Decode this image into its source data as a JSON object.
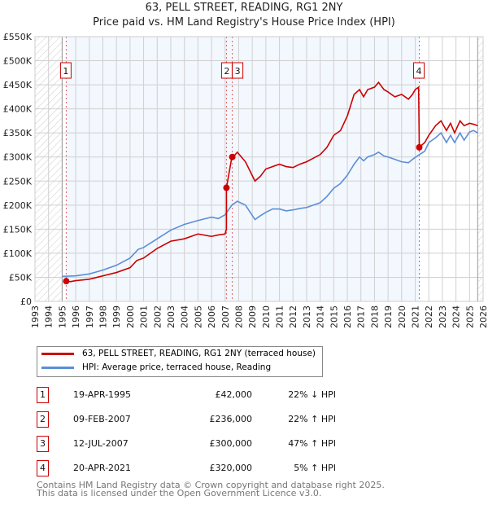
{
  "chart_data": {
    "type": "line",
    "title": "63, PELL STREET, READING, RG1 2NY",
    "subtitle": "Price paid vs. HM Land Registry's House Price Index (HPI)",
    "xlim": [
      1993,
      2026
    ],
    "ylim": [
      0,
      550000
    ],
    "ytick_labels": [
      "£0",
      "£50K",
      "£100K",
      "£150K",
      "£200K",
      "£250K",
      "£300K",
      "£350K",
      "£400K",
      "£450K",
      "£500K",
      "£550K"
    ],
    "xtick_labels": [
      "1993",
      "1994",
      "1995",
      "1996",
      "1997",
      "1998",
      "1999",
      "2000",
      "2001",
      "2002",
      "2003",
      "2004",
      "2005",
      "2006",
      "2007",
      "2008",
      "2009",
      "2010",
      "2011",
      "2012",
      "2013",
      "2014",
      "2015",
      "2016",
      "2017",
      "2018",
      "2019",
      "2020",
      "2021",
      "2022",
      "2023",
      "2024",
      "2025",
      "2026"
    ],
    "grid": true,
    "series": [
      {
        "name": "63, PELL STREET, READING, RG1 2NY (terraced house)",
        "color": "#cc0000",
        "x": [
          1995.3,
          1995.6,
          1996,
          1997,
          1998,
          1999,
          2000,
          2000.5,
          2001,
          2002,
          2003,
          2004,
          2005,
          2006,
          2006.5,
          2007.0,
          2007.1,
          2007.1,
          2007.5,
          2007.6,
          2007.9,
          2008.5,
          2009.2,
          2009.6,
          2010,
          2010.5,
          2011,
          2011.5,
          2012,
          2012.5,
          2013,
          2014,
          2014.5,
          2015,
          2015.5,
          2016,
          2016.5,
          2016.9,
          2017.2,
          2017.5,
          2018,
          2018.3,
          2018.7,
          2019,
          2019.5,
          2020,
          2020.5,
          2020.8,
          2021.0,
          2021.25,
          2021.3,
          2021.7,
          2022,
          2022.5,
          2022.9,
          2023.3,
          2023.6,
          2023.9,
          2024.3,
          2024.6,
          2025,
          2025.3,
          2025.6
        ],
        "y": [
          42000,
          41000,
          43000,
          46000,
          53000,
          60000,
          70000,
          85000,
          90000,
          110000,
          125000,
          130000,
          140000,
          135000,
          138000,
          140000,
          150000,
          236000,
          300000,
          300000,
          310000,
          290000,
          250000,
          260000,
          275000,
          280000,
          285000,
          280000,
          278000,
          285000,
          290000,
          305000,
          320000,
          345000,
          355000,
          385000,
          430000,
          440000,
          425000,
          440000,
          445000,
          455000,
          440000,
          435000,
          425000,
          430000,
          420000,
          430000,
          440000,
          445000,
          320000,
          330000,
          345000,
          365000,
          375000,
          355000,
          370000,
          350000,
          375000,
          365000,
          370000,
          368000,
          365000
        ]
      },
      {
        "name": "HPI: Average price, terraced house, Reading",
        "color": "#5b8fd4",
        "x": [
          1995,
          1996,
          1997,
          1998,
          1999,
          2000,
          2000.6,
          2001,
          2002,
          2003,
          2004,
          2005,
          2006,
          2006.5,
          2007,
          2007.5,
          2007.9,
          2008.5,
          2009.2,
          2009.6,
          2010,
          2010.5,
          2011,
          2011.5,
          2012,
          2012.5,
          2013,
          2014,
          2014.5,
          2015,
          2015.5,
          2016,
          2016.5,
          2016.9,
          2017.2,
          2017.5,
          2018,
          2018.3,
          2018.7,
          2019,
          2019.5,
          2020,
          2020.5,
          2020.8,
          2021.3,
          2021.7,
          2022,
          2022.5,
          2022.9,
          2023.3,
          2023.6,
          2023.9,
          2024.3,
          2024.6,
          2025,
          2025.3,
          2025.6
        ],
        "y": [
          52000,
          53000,
          57000,
          65000,
          75000,
          90000,
          108000,
          112000,
          130000,
          148000,
          160000,
          168000,
          175000,
          172000,
          180000,
          200000,
          208000,
          200000,
          170000,
          178000,
          185000,
          192000,
          192000,
          188000,
          190000,
          193000,
          195000,
          205000,
          218000,
          235000,
          245000,
          262000,
          285000,
          300000,
          292000,
          300000,
          305000,
          310000,
          302000,
          300000,
          295000,
          290000,
          288000,
          295000,
          305000,
          312000,
          330000,
          340000,
          350000,
          330000,
          345000,
          330000,
          350000,
          335000,
          352000,
          355000,
          350000
        ]
      }
    ],
    "sales": [
      {
        "label": "1",
        "x": 1995.3,
        "y": 42000
      },
      {
        "label": "2",
        "x": 2007.1,
        "y": 236000
      },
      {
        "label": "3",
        "x": 2007.53,
        "y": 300000
      },
      {
        "label": "4",
        "x": 2021.3,
        "y": 320000
      }
    ],
    "owned_period": [
      1995.3,
      2021.3
    ],
    "data_range": [
      1995,
      2025.6
    ]
  },
  "legend": {
    "items": [
      "63, PELL STREET, READING, RG1 2NY (terraced house)",
      "HPI: Average price, terraced house, Reading"
    ]
  },
  "table": [
    {
      "num": "1",
      "date": "19-APR-1995",
      "price": "£42,000",
      "hpi": "22% ↓ HPI"
    },
    {
      "num": "2",
      "date": "09-FEB-2007",
      "price": "£236,000",
      "hpi": "22% ↑ HPI"
    },
    {
      "num": "3",
      "date": "12-JUL-2007",
      "price": "£300,000",
      "hpi": "47% ↑ HPI"
    },
    {
      "num": "4",
      "date": "20-APR-2021",
      "price": "£320,000",
      "hpi": "5% ↑ HPI"
    }
  ],
  "footer": [
    "Contains HM Land Registry data © Crown copyright and database right 2025.",
    "This data is licensed under the Open Government Licence v3.0."
  ]
}
